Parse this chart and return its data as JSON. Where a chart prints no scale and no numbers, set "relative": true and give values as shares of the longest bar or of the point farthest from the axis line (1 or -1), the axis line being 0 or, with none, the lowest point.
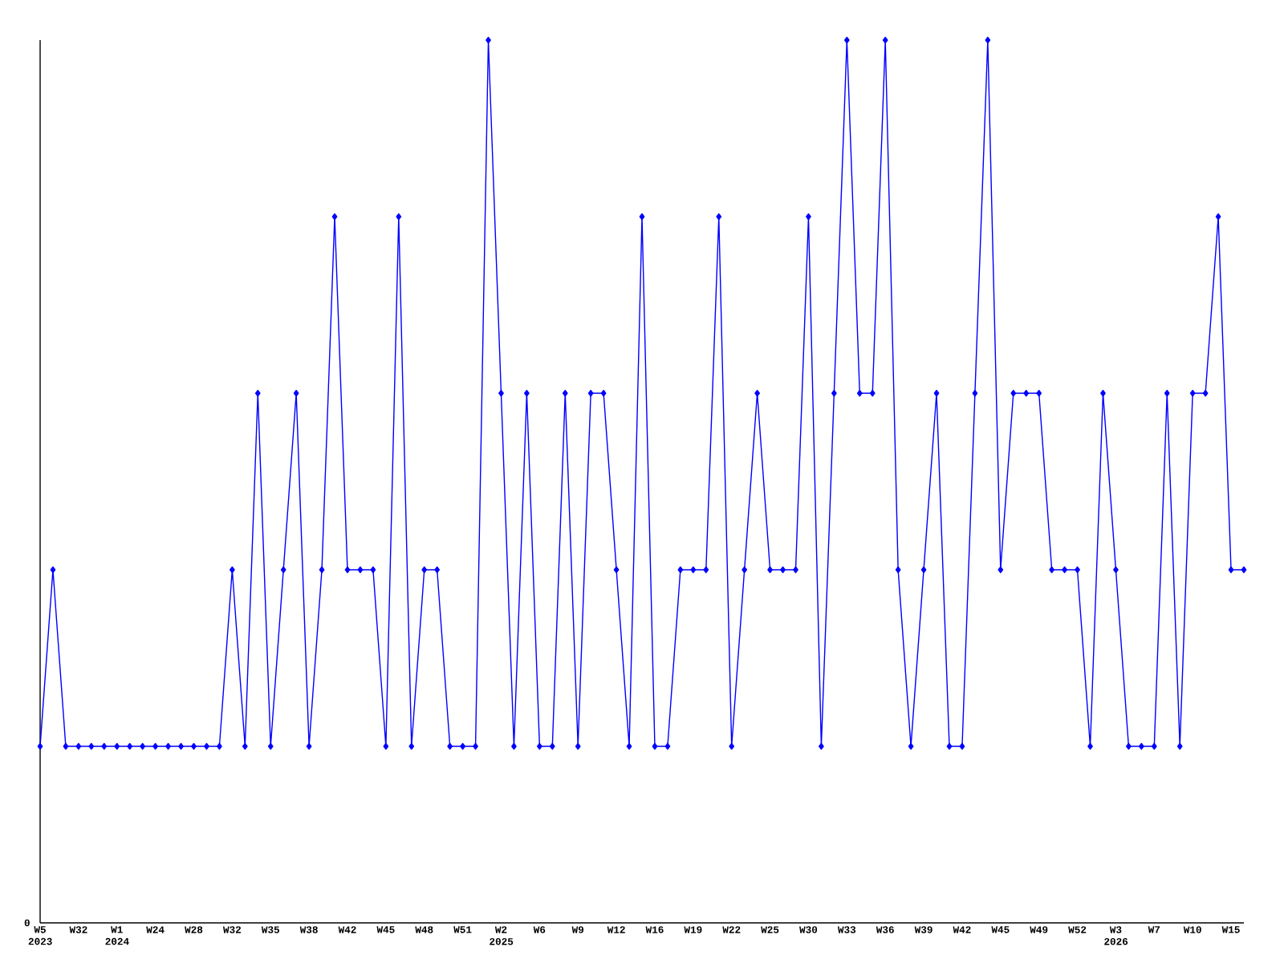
{
  "chart_data": {
    "type": "line",
    "relative": true,
    "marker": "diamond",
    "line_style": "solid",
    "grid": false,
    "annotations": [
      "0"
    ],
    "categories": [
      "W5 2023",
      null,
      null,
      "W32",
      null,
      null,
      "W1 2024",
      null,
      null,
      "W24",
      null,
      null,
      "W28",
      null,
      null,
      "W32",
      null,
      null,
      "W35",
      null,
      null,
      "W38",
      null,
      null,
      "W42",
      null,
      null,
      "W45",
      null,
      null,
      "W48",
      null,
      null,
      "W51",
      null,
      null,
      "W2 2025",
      null,
      null,
      "W6",
      null,
      null,
      "W9",
      null,
      null,
      "W12",
      null,
      null,
      "W16",
      null,
      null,
      "W19",
      null,
      null,
      "W22",
      null,
      null,
      "W25",
      null,
      null,
      "W30",
      null,
      null,
      "W33",
      null,
      null,
      "W36",
      null,
      null,
      "W39",
      null,
      null,
      "W42",
      null,
      null,
      "W45",
      null,
      null,
      "W49",
      null,
      null,
      "W52",
      null,
      null,
      "W3 2026",
      null,
      null,
      "W7",
      null,
      null,
      "W10",
      null,
      null,
      "W15",
      null
    ],
    "series": [
      {
        "color": "#0000ff",
        "values": [
          0.2,
          0.4,
          0.2,
          0.2,
          0.2,
          0.2,
          0.2,
          0.2,
          0.2,
          0.2,
          0.2,
          0.2,
          0.2,
          0.2,
          0.2,
          0.4,
          0.2,
          0.6,
          0.2,
          0.4,
          0.6,
          0.2,
          0.4,
          0.8,
          0.4,
          0.4,
          0.4,
          0.2,
          0.8,
          0.2,
          0.4,
          0.4,
          0.2,
          0.2,
          0.2,
          1.0,
          0.6,
          0.2,
          0.6,
          0.2,
          0.2,
          0.6,
          0.2,
          0.6,
          0.6,
          0.4,
          0.2,
          0.8,
          0.2,
          0.2,
          0.4,
          0.4,
          0.4,
          0.8,
          0.2,
          0.4,
          0.6,
          0.4,
          0.4,
          0.4,
          0.8,
          0.2,
          0.6,
          1.0,
          0.6,
          0.6,
          1.0,
          0.4,
          0.2,
          0.4,
          0.6,
          0.2,
          0.2,
          0.6,
          1.0,
          0.4,
          0.6,
          0.6,
          0.6,
          0.4,
          0.4,
          0.4,
          0.2,
          0.6,
          0.4,
          0.2,
          0.2,
          0.2,
          0.6,
          0.2,
          0.6,
          0.6,
          0.8,
          0.4,
          0.4
        ]
      }
    ]
  }
}
